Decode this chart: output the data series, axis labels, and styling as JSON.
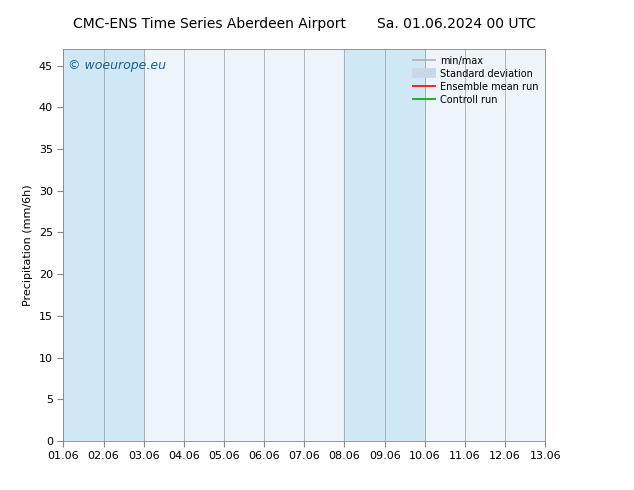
{
  "title_left": "CMC-ENS Time Series Aberdeen Airport",
  "title_right": "Sa. 01.06.2024 00 UTC",
  "ylabel": "Precipitation (mm/6h)",
  "watermark": "© woeurope.eu",
  "x_tick_labels": [
    "01.06",
    "02.06",
    "03.06",
    "04.06",
    "05.06",
    "06.06",
    "07.06",
    "08.06",
    "09.06",
    "10.06",
    "11.06",
    "12.06",
    "13.06"
  ],
  "ylim": [
    0,
    47
  ],
  "yticks": [
    0,
    5,
    10,
    15,
    20,
    25,
    30,
    35,
    40,
    45
  ],
  "shade_regions": [
    {
      "start": 0,
      "end": 2,
      "color": "#d0e8f5"
    },
    {
      "start": 7,
      "end": 9,
      "color": "#d0e8f5"
    }
  ],
  "plot_bg_color": "#edf5fb",
  "fig_bg_color": "#ffffff",
  "legend_items": [
    {
      "label": "min/max",
      "color": "#b0b0b0",
      "linewidth": 1.2
    },
    {
      "label": "Standard deviation",
      "color": "#c8d8e8",
      "linewidth": 7
    },
    {
      "label": "Ensemble mean run",
      "color": "#ff0000",
      "linewidth": 1.2
    },
    {
      "label": "Controll run",
      "color": "#00aa00",
      "linewidth": 1.2
    }
  ],
  "title_fontsize": 10,
  "ylabel_fontsize": 8,
  "tick_fontsize": 8,
  "watermark_fontsize": 9
}
